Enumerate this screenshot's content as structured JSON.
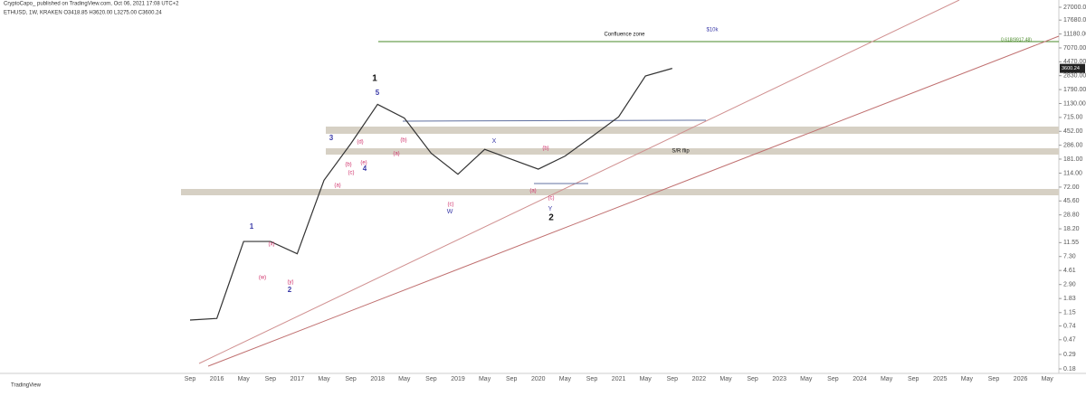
{
  "header": {
    "published": "CryptoCapo_ published on TradingView.com, Oct 06, 2021 17:08 UTC+2",
    "symbol": "ETHUSD, 1W, KRAKEN O3418.85 H3620.00 L3275.00 C3600.24"
  },
  "footer": "TradingView",
  "chart_data": {
    "type": "line",
    "log_scale": true,
    "color": "#333333",
    "categories": [
      "Sep",
      "2016",
      "May",
      "Sep",
      "2017",
      "May",
      "Sep",
      "2018",
      "May",
      "Sep",
      "2019",
      "May",
      "Sep",
      "2020",
      "May",
      "Sep",
      "2021",
      "May",
      "Sep",
      "2022",
      "May",
      "Sep",
      "2023",
      "May",
      "Sep",
      "2024",
      "May",
      "Sep",
      "2025",
      "May",
      "Sep",
      "2026",
      "May"
    ],
    "series": [
      {
        "name": "ETHUSD",
        "color": "#333333",
        "values": [
          0.9,
          0.95,
          12,
          12,
          8,
          90,
          300,
          1100,
          700,
          220,
          110,
          250,
          180,
          130,
          200,
          380,
          730,
          2800,
          3600,
          null,
          null,
          null,
          null,
          null,
          null,
          null,
          null,
          null,
          null,
          null,
          null,
          null,
          null
        ]
      }
    ],
    "ylim": [
      0.18,
      27000
    ],
    "yticks": [
      {
        "value": 0.18,
        "label": "0.18"
      },
      {
        "value": 0.29,
        "label": "0.29"
      },
      {
        "value": 0.47,
        "label": "0.47"
      },
      {
        "value": 0.74,
        "label": "0.74"
      },
      {
        "value": 1.15,
        "label": "1.15"
      },
      {
        "value": 1.83,
        "label": "1.83"
      },
      {
        "value": 2.9,
        "label": "2.90"
      },
      {
        "value": 4.61,
        "label": "4.61"
      },
      {
        "value": 7.3,
        "label": "7.30"
      },
      {
        "value": 11.55,
        "label": "11.55"
      },
      {
        "value": 18.2,
        "label": "18.20"
      },
      {
        "value": 28.8,
        "label": "28.80"
      },
      {
        "value": 45.6,
        "label": "45.60"
      },
      {
        "value": 72,
        "label": "72.00"
      },
      {
        "value": 114,
        "label": "114.00"
      },
      {
        "value": 181,
        "label": "181.00"
      },
      {
        "value": 286,
        "label": "286.00"
      },
      {
        "value": 452,
        "label": "452.00"
      },
      {
        "value": 715,
        "label": "715.00"
      },
      {
        "value": 1130,
        "label": "1130.00"
      },
      {
        "value": 1790,
        "label": "1790.00"
      },
      {
        "value": 2830,
        "label": "2830.00"
      },
      {
        "value": 4470,
        "label": "4470.00"
      },
      {
        "value": 7070,
        "label": "7070.00"
      },
      {
        "value": 11180,
        "label": "11180.00"
      },
      {
        "value": 17680,
        "label": "17680.00"
      },
      {
        "value": 27000,
        "label": "27000.00"
      }
    ],
    "last_price": {
      "value": 3600.24,
      "label": "3600.24"
    },
    "annotations": [
      "Confluence zone",
      "$10k",
      "0.618(9917.48)",
      "S/R flip",
      "1",
      "2",
      "1",
      "2",
      "3",
      "4",
      "5",
      "(a)",
      "(b)",
      "(c)",
      "(d)",
      "(e)",
      "(w)",
      "(x)",
      "(y)",
      "W",
      "X",
      "Y",
      "(a)",
      "(b)",
      "(c)",
      "(a)",
      "(b)",
      "(c)"
    ]
  }
}
